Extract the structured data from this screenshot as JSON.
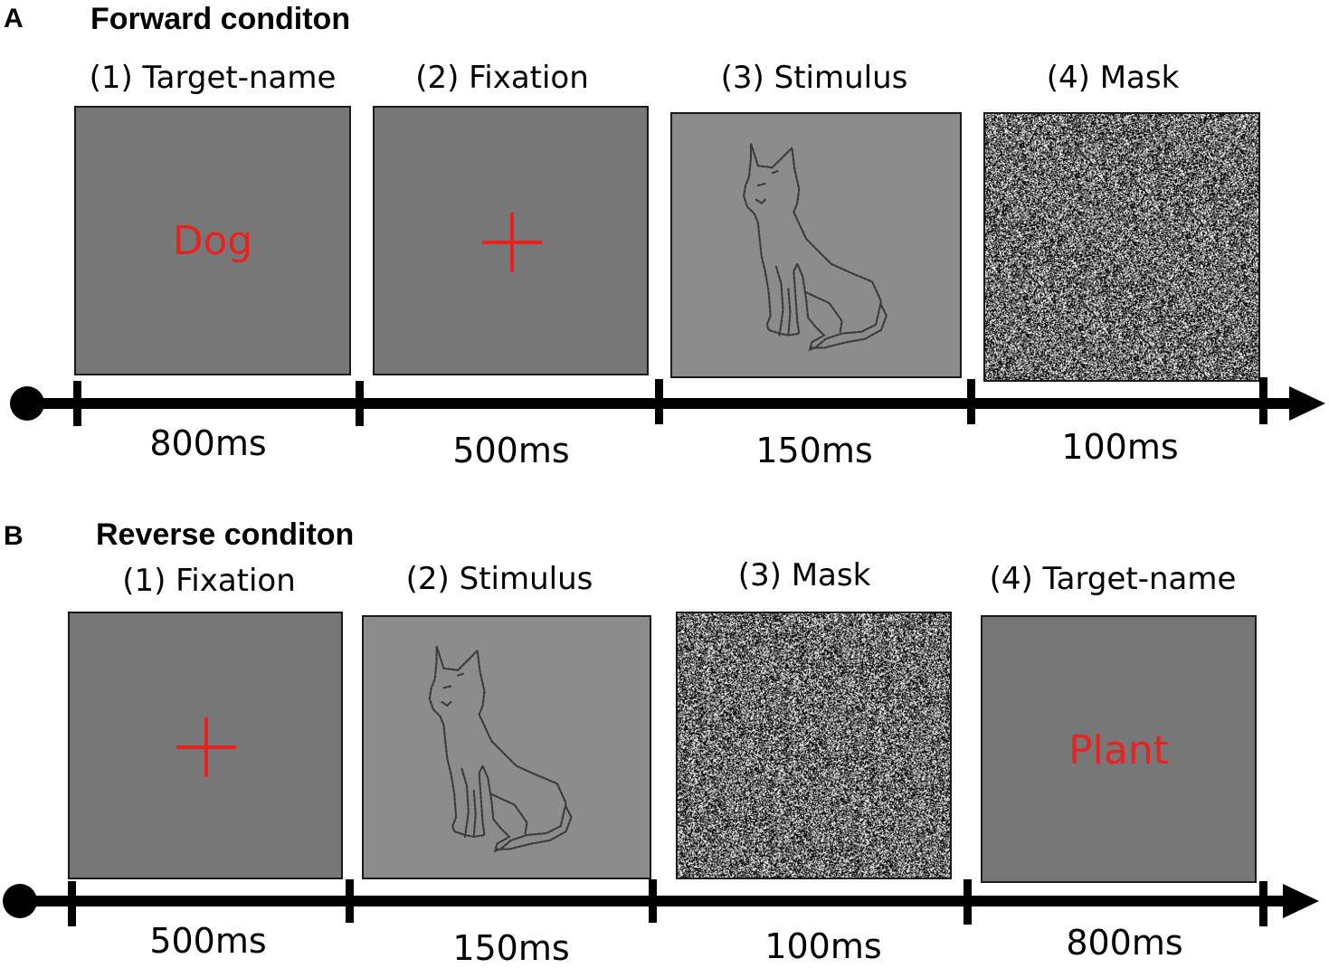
{
  "colors": {
    "accent_red": "#e8231f",
    "dark_screen": "#777777",
    "light_screen": "#8c8c8c"
  },
  "panels": [
    {
      "letter": "A",
      "title": "Forward conditon",
      "steps": [
        {
          "label": "(1) Target-name",
          "content": "word",
          "word": "Dog",
          "duration": "800ms"
        },
        {
          "label": "(2) Fixation",
          "content": "cross",
          "duration": "500ms"
        },
        {
          "label": "(3) Stimulus",
          "content": "cat-outline-drawing",
          "duration": "150ms"
        },
        {
          "label": "(4) Mask",
          "content": "noise-mask",
          "duration": "100ms"
        }
      ]
    },
    {
      "letter": "B",
      "title": "Reverse conditon",
      "steps": [
        {
          "label": "(1) Fixation",
          "content": "cross",
          "duration": "500ms"
        },
        {
          "label": "(2) Stimulus",
          "content": "cat-outline-drawing",
          "duration": "150ms"
        },
        {
          "label": "(3) Mask",
          "content": "noise-mask",
          "duration": "100ms"
        },
        {
          "label": "(4) Target-name",
          "content": "word",
          "word": "Plant",
          "duration": "800ms"
        }
      ]
    }
  ]
}
